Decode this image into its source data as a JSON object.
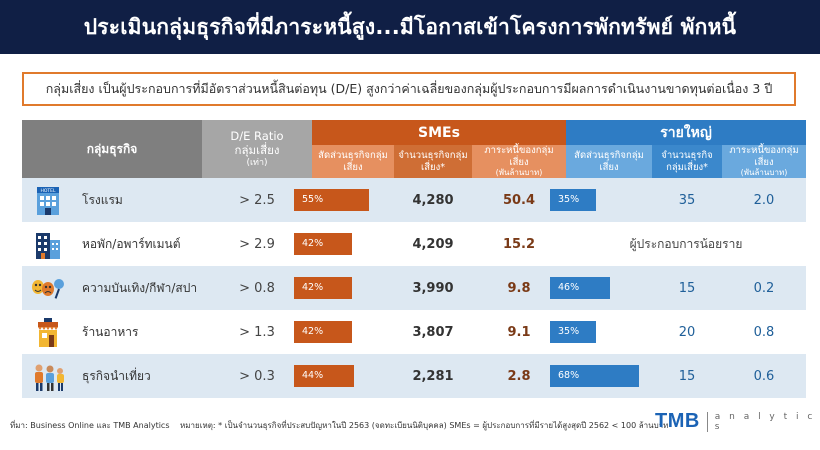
{
  "header": {
    "title": "ประเมินกลุ่มธุรกิจที่มีภาระหนี้สูง...มีโอกาสเข้าโครงการพักทรัพย์ พักหนี้"
  },
  "callout": {
    "text": "กลุ่มเสี่ยง เป็นผู้ประกอบการที่มีอัตราส่วนหนี้สินต่อทุน (D/E) สูงกว่าค่าเฉลี่ยของกลุ่มผู้ประกอบการมีผลการดำเนินงานขาดทุนต่อเนื่อง 3 ปี"
  },
  "table": {
    "col_category": "กลุ่มธุรกิจ",
    "col_de_line1": "D/E Ratio",
    "col_de_line2": "กลุ่มเสี่ยง",
    "col_de_unit": "(เท่า)",
    "group_sme": "SMEs",
    "group_large": "รายใหญ่",
    "sme_share": "สัดส่วนธุรกิจกลุ่มเสี่ยง",
    "sme_count": "จำนวนธุรกิจกลุ่มเสี่ยง*",
    "sme_debt_line1": "ภาระหนี้ของกลุ่มเสี่ยง",
    "sme_debt_unit": "(พันล้านบาท)",
    "large_share": "สัดส่วนธุรกิจกลุ่มเสี่ยง",
    "large_count": "จำนวนธุรกิจกลุ่มเสี่ยง*",
    "large_debt_line1": "ภาระหนี้ของกลุ่มเสี่ยง",
    "large_debt_unit": "(พันล้านบาท)"
  },
  "chart_data": {
    "type": "table",
    "rows": [
      {
        "category": "โรงแรม",
        "icon": "hotel-icon",
        "de_ratio": "> 2.5",
        "sme_share_pct": 55,
        "sme_share_label": "55%",
        "sme_count": "4,280",
        "sme_debt": "50.4",
        "large_share_pct": 35,
        "large_share_label": "35%",
        "large_count": "35",
        "large_debt": "2.0",
        "large_note": ""
      },
      {
        "category": "หอพัก/อพาร์ทเมนต์",
        "icon": "apartment-icon",
        "de_ratio": "> 2.9",
        "sme_share_pct": 42,
        "sme_share_label": "42%",
        "sme_count": "4,209",
        "sme_debt": "15.2",
        "large_share_pct": null,
        "large_share_label": "",
        "large_count": "",
        "large_debt": "",
        "large_note": "ผู้ประกอบการน้อยราย"
      },
      {
        "category": "ความบันเทิง/กีฬา/สปา",
        "icon": "entertainment-icon",
        "de_ratio": "> 0.8",
        "sme_share_pct": 42,
        "sme_share_label": "42%",
        "sme_count": "3,990",
        "sme_debt": "9.8",
        "large_share_pct": 46,
        "large_share_label": "46%",
        "large_count": "15",
        "large_debt": "0.2",
        "large_note": ""
      },
      {
        "category": "ร้านอาหาร",
        "icon": "restaurant-icon",
        "de_ratio": "> 1.3",
        "sme_share_pct": 42,
        "sme_share_label": "42%",
        "sme_count": "3,807",
        "sme_debt": "9.1",
        "large_share_pct": 35,
        "large_share_label": "35%",
        "large_count": "20",
        "large_debt": "0.8",
        "large_note": ""
      },
      {
        "category": "ธุรกิจนำเที่ยว",
        "icon": "tourism-icon",
        "de_ratio": "> 0.3",
        "sme_share_pct": 44,
        "sme_share_label": "44%",
        "sme_count": "2,281",
        "sme_debt": "2.8",
        "large_share_pct": 68,
        "large_share_label": "68%",
        "large_count": "15",
        "large_debt": "0.6",
        "large_note": ""
      }
    ]
  },
  "footer": {
    "source": "ที่มา: Business Online และ TMB Analytics",
    "note": "หมายเหตุ: * เป็นจำนวนธุรกิจที่ประสบปัญหาในปี 2563 (จดทะเบียนนิติบุคคล) SMEs = ผู้ประกอบการที่มีรายได้สูงสุดปี 2562 < 100 ล้านบาท",
    "logo_main": "TMB",
    "logo_sub": "a n a l y t i c s"
  },
  "colors": {
    "navy": "#101f45",
    "orange": "#c7571b",
    "blue": "#2e7cc4",
    "row_shade": "#dde8f2"
  }
}
